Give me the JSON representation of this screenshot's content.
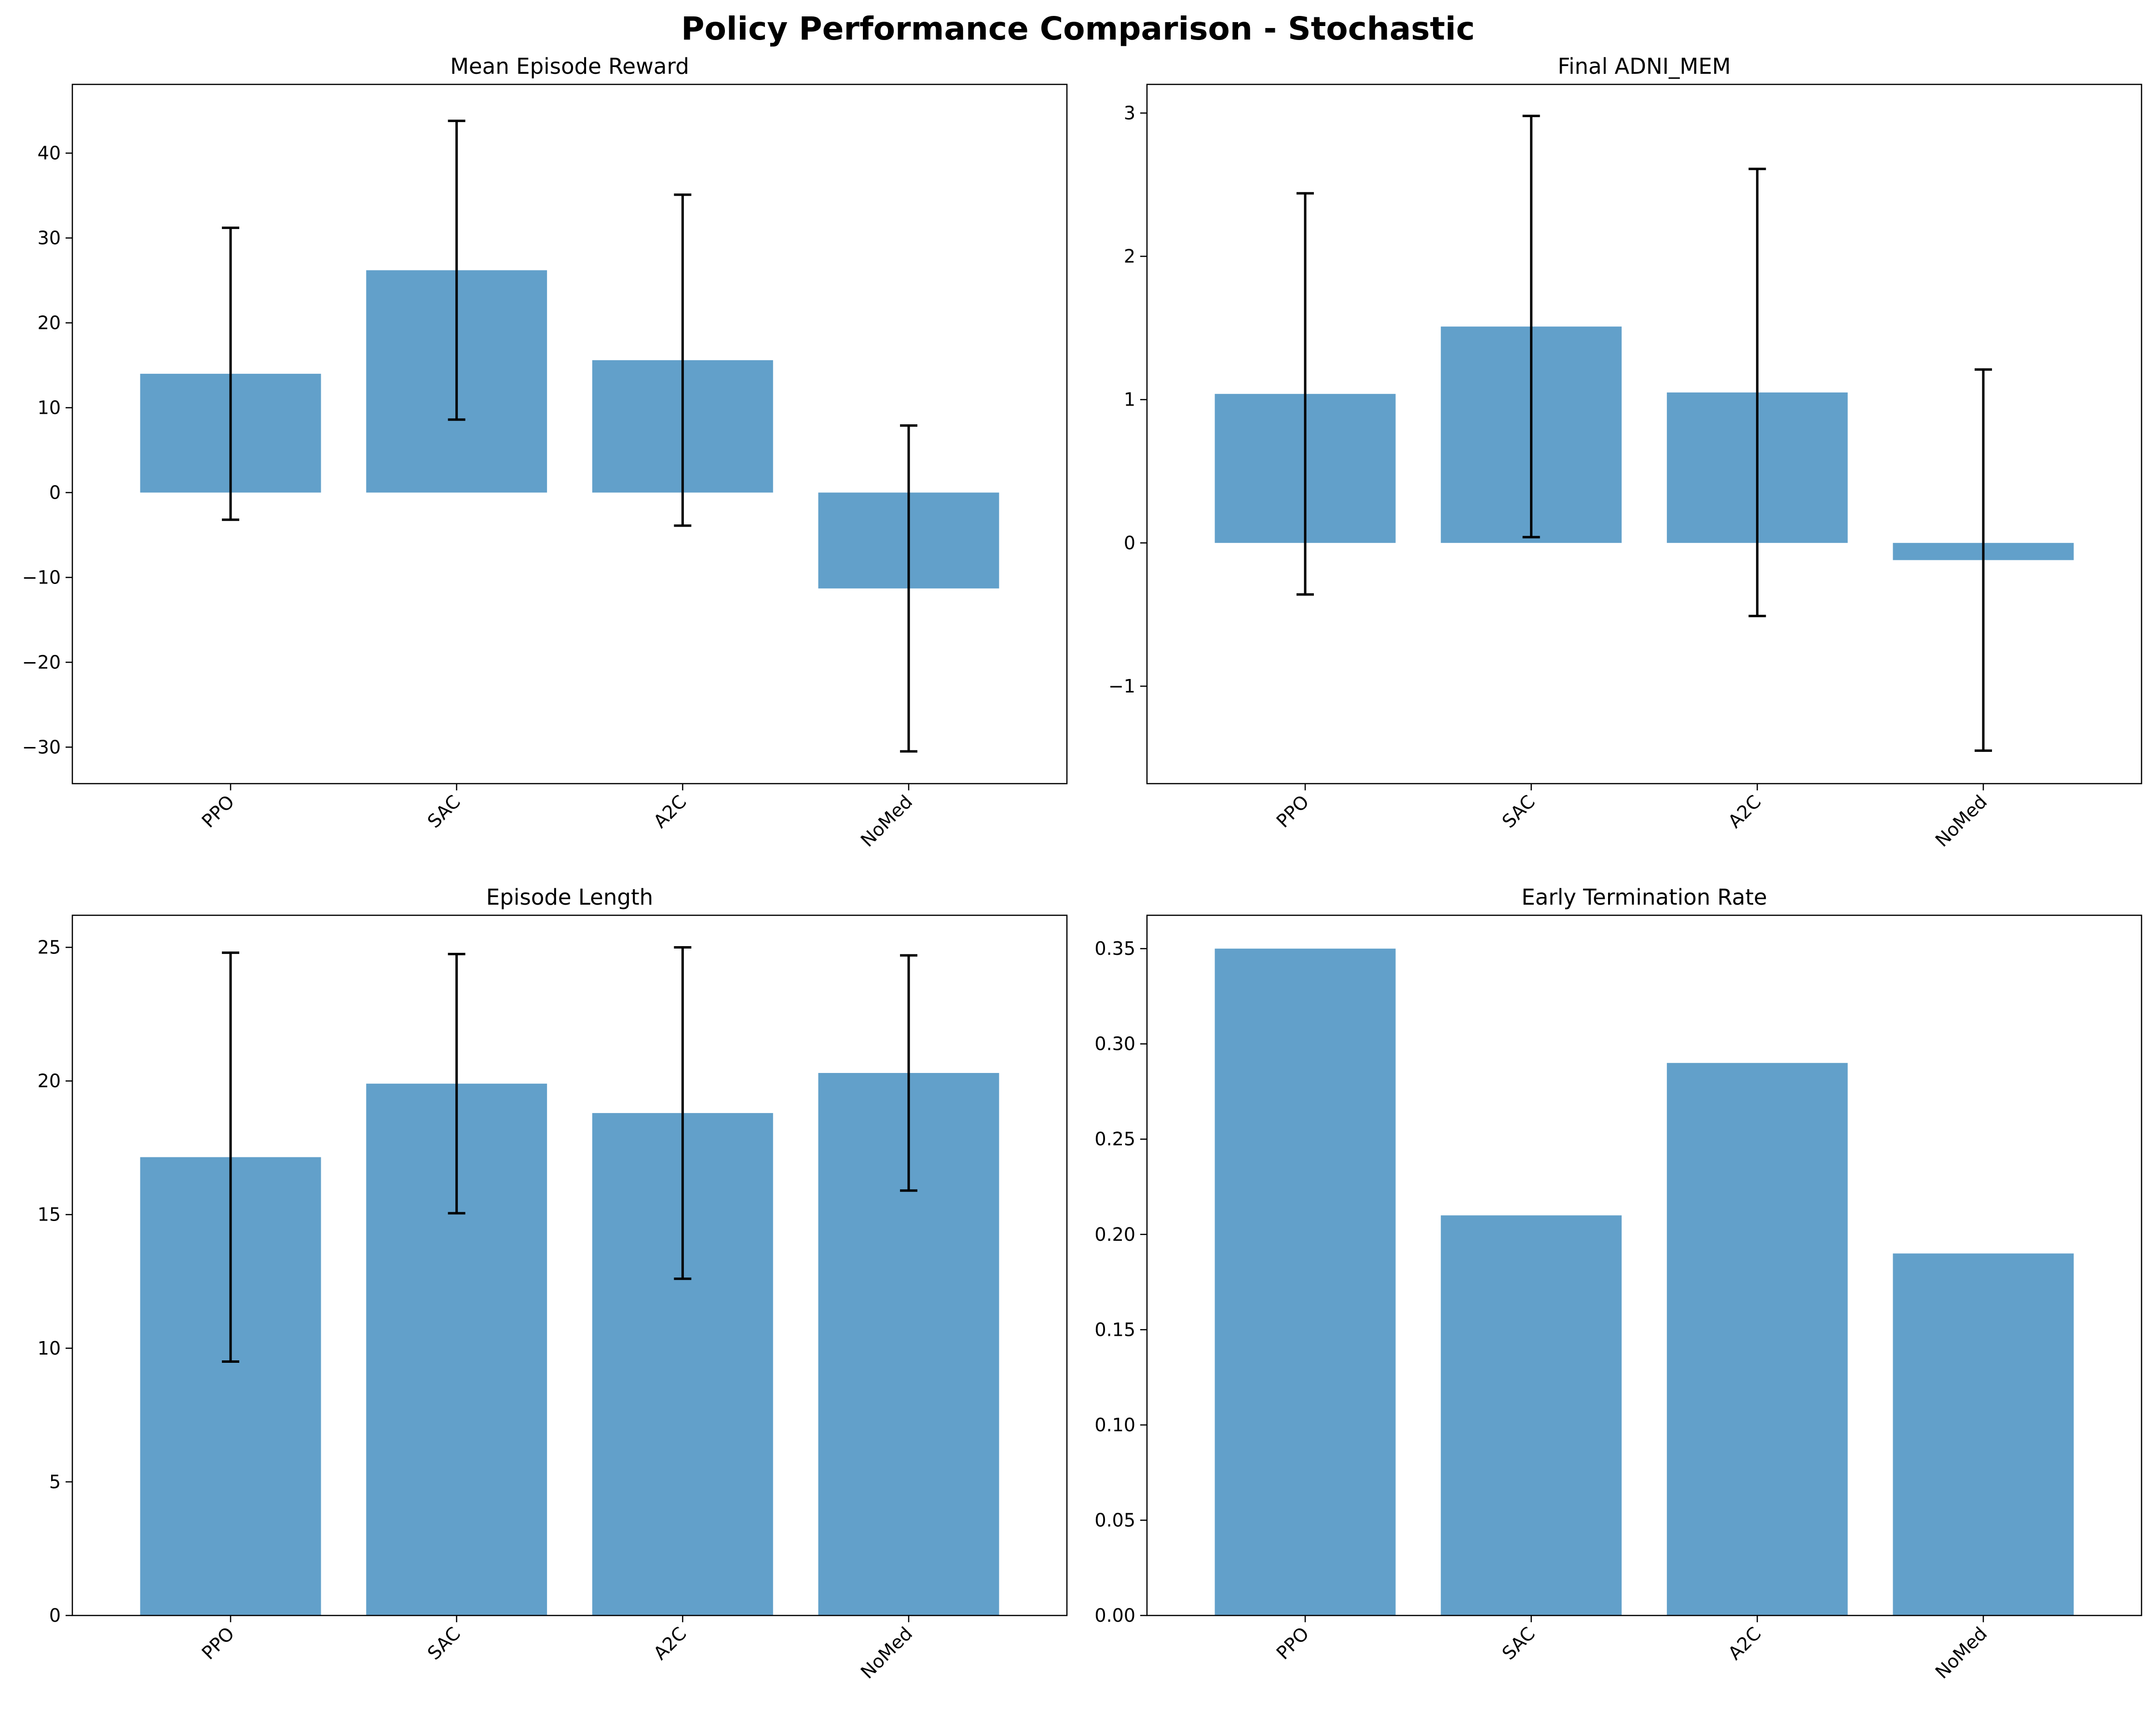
{
  "figure_title": "Policy Performance Comparison - Stochastic",
  "colors": {
    "bar": "#62a0ca",
    "error": "#000000",
    "axis": "#000000",
    "text": "#000000"
  },
  "chart_data": [
    {
      "type": "bar",
      "title": "Mean Episode Reward",
      "categories": [
        "PPO",
        "SAC",
        "A2C",
        "NoMed"
      ],
      "values": [
        14.0,
        26.2,
        15.6,
        -11.3
      ],
      "errors": [
        17.2,
        17.6,
        19.5,
        19.2
      ],
      "ylim": [
        -34.3,
        48.1
      ],
      "yticks": [
        -30,
        -20,
        -10,
        0,
        10,
        20,
        30,
        40
      ],
      "ytick_labels": [
        "−30",
        "−20",
        "−10",
        "0",
        "10",
        "20",
        "30",
        "40"
      ],
      "xlabel": "",
      "ylabel": "",
      "grid": false
    },
    {
      "type": "bar",
      "title": "Final ADNI_MEM",
      "categories": [
        "PPO",
        "SAC",
        "A2C",
        "NoMed"
      ],
      "values": [
        1.04,
        1.51,
        1.05,
        -0.12
      ],
      "errors": [
        1.4,
        1.47,
        1.56,
        1.33
      ],
      "ylim": [
        -1.68,
        3.2
      ],
      "yticks": [
        -1,
        0,
        1,
        2,
        3
      ],
      "ytick_labels": [
        "−1",
        "0",
        "1",
        "2",
        "3"
      ],
      "xlabel": "",
      "ylabel": "",
      "grid": false
    },
    {
      "type": "bar",
      "title": "Episode Length",
      "categories": [
        "PPO",
        "SAC",
        "A2C",
        "NoMed"
      ],
      "values": [
        17.15,
        19.9,
        18.8,
        20.3
      ],
      "errors": [
        7.65,
        4.85,
        6.2,
        4.4
      ],
      "ylim": [
        0,
        26.2
      ],
      "yticks": [
        0,
        5,
        10,
        15,
        20,
        25
      ],
      "ytick_labels": [
        "0",
        "5",
        "10",
        "15",
        "20",
        "25"
      ],
      "xlabel": "",
      "ylabel": "",
      "grid": false
    },
    {
      "type": "bar",
      "title": "Early Termination Rate",
      "categories": [
        "PPO",
        "SAC",
        "A2C",
        "NoMed"
      ],
      "values": [
        0.35,
        0.21,
        0.29,
        0.19
      ],
      "errors": null,
      "ylim": [
        0,
        0.3675
      ],
      "yticks": [
        0,
        0.05,
        0.1,
        0.15,
        0.2,
        0.25,
        0.3,
        0.35
      ],
      "ytick_labels": [
        "0.00",
        "0.05",
        "0.10",
        "0.15",
        "0.20",
        "0.25",
        "0.30",
        "0.35"
      ],
      "xlabel": "",
      "ylabel": "",
      "grid": false
    }
  ]
}
